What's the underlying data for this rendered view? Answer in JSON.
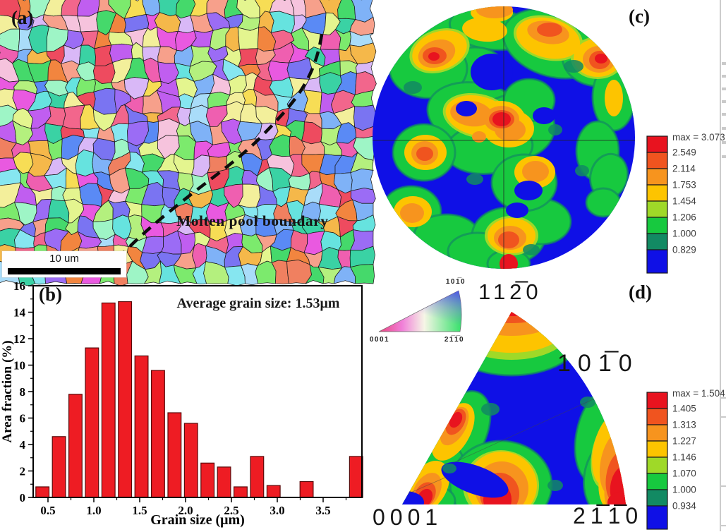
{
  "figure_labels": {
    "a": "(a)",
    "b": "(b)",
    "c": "(c)",
    "d": "(d)"
  },
  "panel_a": {
    "scale_bar_text": "10 um",
    "annotation": "Molten pool boundary",
    "grain_palette": [
      "#ee4b5f",
      "#f2668c",
      "#ef5fb0",
      "#e959e0",
      "#c05ef0",
      "#9b6cf5",
      "#7a74f2",
      "#5a8af5",
      "#7fb2f7",
      "#a9dcf9",
      "#66e3df",
      "#3ad2a4",
      "#45d96b",
      "#7cea6d",
      "#b4f07e",
      "#e4f58f",
      "#f7dd55",
      "#f5b84a",
      "#f2853f",
      "#f7a08b",
      "#f6c3dd",
      "#d9b8f7",
      "#9ef5c6",
      "#f3ef9b",
      "#86e6f0",
      "#f08060"
    ]
  },
  "chart_data": {
    "type": "bar",
    "title": "",
    "xlabel": "Grain size (μm)",
    "ylabel": "Area fraction (%)",
    "annotation": "Average grain size: 1.53μm",
    "x_ticks": [
      0.5,
      1.0,
      1.5,
      2.0,
      2.5,
      3.0,
      3.5
    ],
    "y_ticks": [
      0,
      2,
      4,
      6,
      8,
      10,
      12,
      14,
      16
    ],
    "xlim": [
      0.34,
      3.98
    ],
    "ylim": [
      0,
      16
    ],
    "grid": false,
    "bin_width": 0.18,
    "bar_color": "#ee1c23",
    "bar_edge_color": "#5a0a0a",
    "x": [
      0.44,
      0.62,
      0.8,
      0.98,
      1.16,
      1.34,
      1.52,
      1.7,
      1.88,
      2.06,
      2.24,
      2.42,
      2.6,
      2.78,
      2.96,
      3.32,
      3.86
    ],
    "values": [
      0.8,
      4.6,
      7.8,
      11.3,
      14.7,
      14.8,
      10.7,
      9.6,
      6.4,
      5.6,
      2.6,
      2.3,
      0.8,
      3.1,
      0.9,
      1.2,
      3.1
    ]
  },
  "panel_c": {
    "pole_label": "112̅0",
    "colorbar": {
      "max_label": "max = 3.073",
      "ticks": [
        "2.549",
        "2.114",
        "1.753",
        "1.454",
        "1.206",
        "1.000",
        "0.829"
      ]
    }
  },
  "panel_d": {
    "arc_label": "101̅0",
    "bottom_left_label": "0001",
    "bottom_right_label": "21̅1̅0",
    "colorbar": {
      "max_label": "max = 1.504",
      "ticks": [
        "1.405",
        "1.313",
        "1.227",
        "1.146",
        "1.070",
        "1.000",
        "0.934"
      ]
    }
  },
  "ipf_key": {
    "top_label": "101̅0",
    "bottom_left_label": "0001",
    "bottom_right_label": "21̅1̅0"
  },
  "contour_colors": [
    "#e8131f",
    "#f0541f",
    "#f7941e",
    "#fdc400",
    "#9fd928",
    "#17c93f",
    "#128a63",
    "#0f10e6"
  ]
}
